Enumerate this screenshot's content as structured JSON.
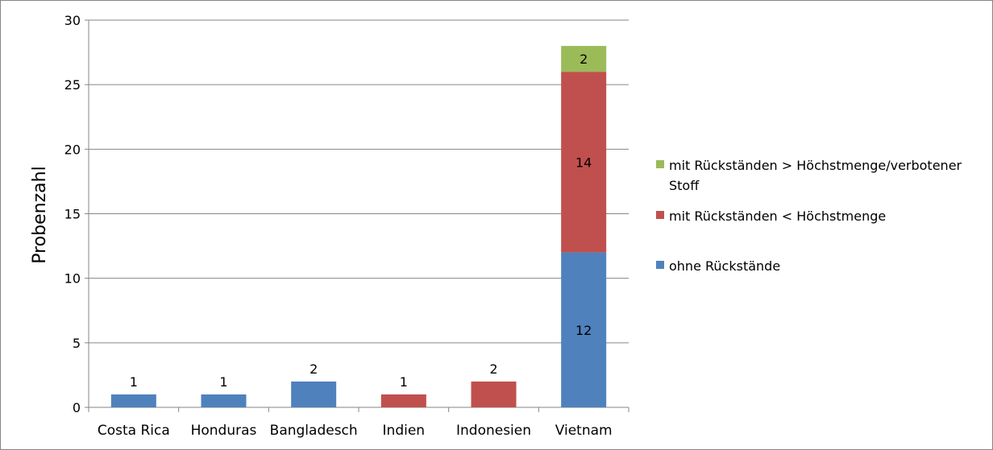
{
  "chart_data": {
    "type": "bar",
    "stacked": true,
    "title": "",
    "xlabel": "",
    "ylabel": "Probenzahl",
    "ylim": [
      0,
      30
    ],
    "yticks": [
      0,
      5,
      10,
      15,
      20,
      25,
      30
    ],
    "grid": true,
    "legend_position": "right",
    "categories": [
      "Costa Rica",
      "Honduras",
      "Bangladesch",
      "Indien",
      "Indonesien",
      "Vietnam"
    ],
    "series": [
      {
        "name": "ohne Rückstände",
        "color": "#4f81bd",
        "values": [
          1,
          1,
          2,
          0,
          0,
          12
        ]
      },
      {
        "name": "mit Rückständen < Höchstmenge",
        "color": "#c0504d",
        "values": [
          0,
          0,
          0,
          1,
          2,
          14
        ]
      },
      {
        "name": "mit Rückständen > Höchstmenge/verbotener Stoff",
        "color": "#9bbb59",
        "values": [
          0,
          0,
          0,
          0,
          0,
          2
        ]
      }
    ],
    "legend": [
      {
        "lines": [
          "mit Rückständen > Höchstmenge/verbotener",
          "Stoff"
        ],
        "color": "#9bbb59"
      },
      {
        "lines": [
          "mit Rückständen < Höchstmenge"
        ],
        "color": "#c0504d"
      },
      {
        "lines": [
          "ohne Rückstände"
        ],
        "color": "#4f81bd"
      }
    ]
  }
}
